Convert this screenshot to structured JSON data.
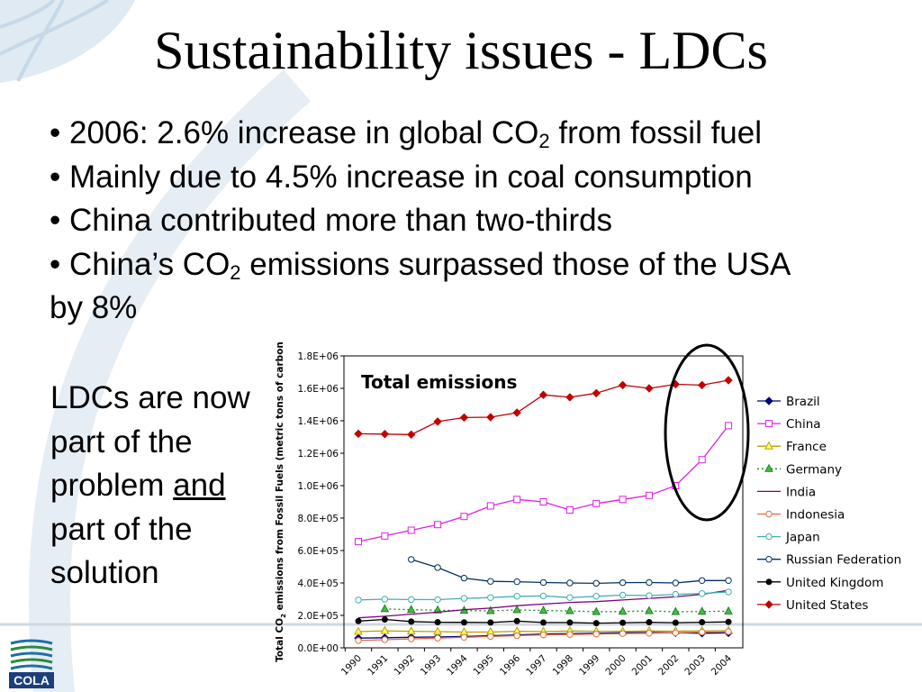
{
  "slide": {
    "title": "Sustainability issues - LDCs",
    "bullets": [
      {
        "pre": "• 2006: 2.6% increase in global CO",
        "sub": "2",
        "post": " from fossil fuel"
      },
      {
        "pre": "• Mainly due to 4.5% increase in coal consumption",
        "sub": "",
        "post": ""
      },
      {
        "pre": "• China contributed more than two-thirds",
        "sub": "",
        "post": ""
      },
      {
        "pre": "• China’s CO",
        "sub": "2",
        "post": " emissions surpassed those of the USA by 8%"
      }
    ],
    "side_note": {
      "line1": "LDCs are now part of the problem ",
      "underlined": "and",
      "line2": " part of the solution"
    },
    "logo_text": "COLA"
  },
  "colors": {
    "background_arc": "#dfe9f3",
    "highlight_ellipse": "#000000"
  },
  "chart_data": {
    "type": "line",
    "title": "Total emissions",
    "ylabel": "Total CO2 emissions from Fossil Fuels (metric tons of carbon",
    "ylabel_parts": {
      "pre": "Total CO",
      "sub": "2",
      "post": " emissions from Fossil Fuels (metric tons of carbon"
    },
    "xlabel": "",
    "ylim": [
      0,
      1800000
    ],
    "yticks": [
      0,
      200000,
      400000,
      600000,
      800000,
      1000000,
      1200000,
      1400000,
      1600000,
      1800000
    ],
    "ytick_labels": [
      "0.0E+00",
      "2.0E+05",
      "4.0E+05",
      "6.0E+05",
      "8.0E+05",
      "1.0E+06",
      "1.2E+06",
      "1.4E+06",
      "1.6E+06",
      "1.8E+06"
    ],
    "categories": [
      "1990",
      "1991",
      "1992",
      "1993",
      "1994",
      "1995",
      "1996",
      "1997",
      "1998",
      "1999",
      "2000",
      "2001",
      "2002",
      "2003",
      "2004"
    ],
    "legend_position": "right",
    "grid": false,
    "series": [
      {
        "name": "Brazil",
        "color": "#000080",
        "marker": "diamond",
        "dash": "",
        "values": [
          60000,
          62000,
          65000,
          67000,
          70000,
          75000,
          80000,
          85000,
          88000,
          90000,
          93000,
          95000,
          93000,
          90000,
          92000
        ]
      },
      {
        "name": "China",
        "color": "#e020e0",
        "marker": "square",
        "dash": "",
        "values": [
          655000,
          690000,
          725000,
          760000,
          810000,
          875000,
          915000,
          900000,
          850000,
          890000,
          915000,
          940000,
          1000000,
          1160000,
          1370000
        ]
      },
      {
        "name": "France",
        "color": "#b8a000",
        "marker": "triangle",
        "dash": "",
        "values": [
          100000,
          105000,
          102000,
          100000,
          97000,
          98000,
          102000,
          100000,
          104000,
          102000,
          101000,
          104000,
          103000,
          105000,
          105000
        ]
      },
      {
        "name": "Germany",
        "color": "#208020",
        "marker": "triangle-filled",
        "dash": "2,3",
        "values": [
          null,
          240000,
          235000,
          232000,
          230000,
          228000,
          234000,
          230000,
          228000,
          222000,
          224000,
          228000,
          222000,
          224000,
          226000
        ]
      },
      {
        "name": "India",
        "color": "#800080",
        "marker": "none",
        "dash": "",
        "values": [
          185000,
          195000,
          208000,
          220000,
          235000,
          245000,
          260000,
          270000,
          280000,
          285000,
          295000,
          305000,
          315000,
          330000,
          355000
        ]
      },
      {
        "name": "Indonesia",
        "color": "#e07040",
        "marker": "circle",
        "dash": "",
        "values": [
          45000,
          50000,
          55000,
          60000,
          65000,
          70000,
          75000,
          80000,
          82000,
          85000,
          88000,
          90000,
          93000,
          97000,
          100000
        ]
      },
      {
        "name": "Japan",
        "color": "#40b0b0",
        "marker": "circle",
        "dash": "",
        "values": [
          295000,
          300000,
          298000,
          297000,
          305000,
          310000,
          318000,
          320000,
          310000,
          318000,
          325000,
          322000,
          330000,
          335000,
          345000
        ]
      },
      {
        "name": "Russian Federation",
        "color": "#003060",
        "marker": "circle",
        "dash": "",
        "values": [
          null,
          null,
          545000,
          495000,
          430000,
          410000,
          408000,
          403000,
          400000,
          398000,
          402000,
          403000,
          400000,
          415000,
          415000
        ]
      },
      {
        "name": "United Kingdom",
        "color": "#000000",
        "marker": "dot",
        "dash": "",
        "values": [
          165000,
          175000,
          162000,
          158000,
          157000,
          156000,
          165000,
          156000,
          156000,
          152000,
          155000,
          158000,
          155000,
          158000,
          160000
        ]
      },
      {
        "name": "United States",
        "color": "#c00000",
        "marker": "diamond",
        "dash": "",
        "values": [
          1320000,
          1318000,
          1315000,
          1395000,
          1420000,
          1422000,
          1450000,
          1560000,
          1545000,
          1570000,
          1620000,
          1600000,
          1625000,
          1620000,
          1650000
        ]
      }
    ]
  }
}
